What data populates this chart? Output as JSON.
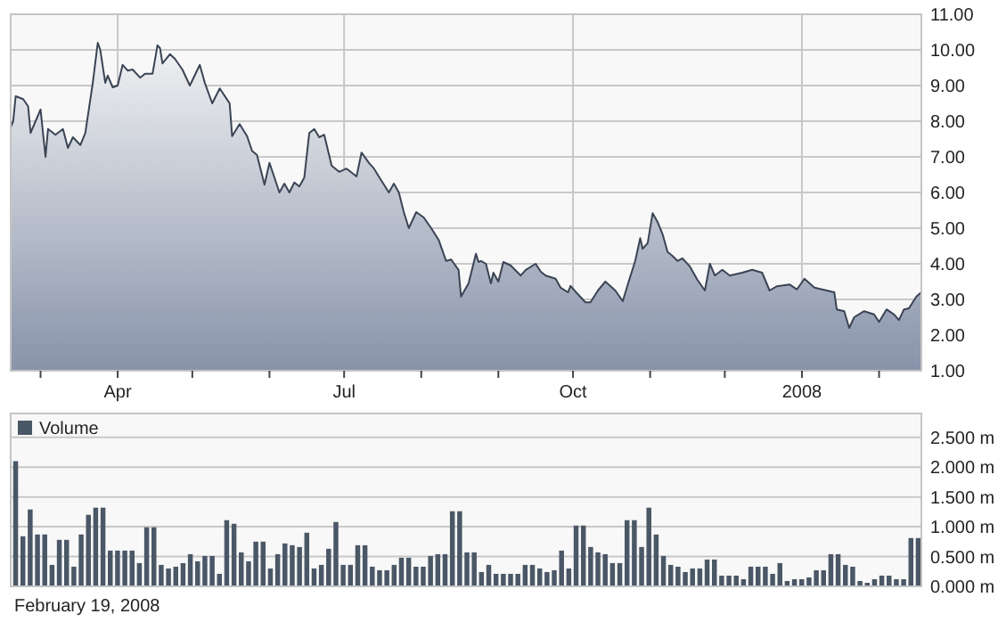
{
  "chart_data": [
    {
      "type": "area",
      "xlim": [
        "2007-02-17",
        "2008-02-18"
      ],
      "ylim": [
        1,
        11
      ],
      "grid": true,
      "xticks": [
        {
          "value": "2007-03-01",
          "label": null
        },
        {
          "value": "2007-04-01",
          "label": "Apr"
        },
        {
          "value": "2007-05-01",
          "label": null
        },
        {
          "value": "2007-06-01",
          "label": null
        },
        {
          "value": "2007-07-01",
          "label": "Jul"
        },
        {
          "value": "2007-08-01",
          "label": null
        },
        {
          "value": "2007-09-01",
          "label": null
        },
        {
          "value": "2007-10-01",
          "label": "Oct"
        },
        {
          "value": "2007-11-01",
          "label": null
        },
        {
          "value": "2007-12-01",
          "label": null
        },
        {
          "value": "2008-01-01",
          "label": "2008"
        },
        {
          "value": "2008-02-01",
          "label": null
        }
      ],
      "yticks": [
        {
          "value": 1,
          "label": "1.00"
        },
        {
          "value": 2,
          "label": "2.00"
        },
        {
          "value": 3,
          "label": "3.00"
        },
        {
          "value": 4,
          "label": "4.00"
        },
        {
          "value": 5,
          "label": "5.00"
        },
        {
          "value": 6,
          "label": "6.00"
        },
        {
          "value": 7,
          "label": "7.00"
        },
        {
          "value": 8,
          "label": "8.00"
        },
        {
          "value": 9,
          "label": "9.00"
        },
        {
          "value": 10,
          "label": "10.00"
        },
        {
          "value": 11,
          "label": "11.00"
        }
      ],
      "series": [
        {
          "color": "#3a4454",
          "x": [
            "2007-02-17",
            "2007-02-18",
            "2007-02-19",
            "2007-02-22",
            "2007-02-24",
            "2007-02-25",
            "2007-02-27",
            "2007-03-01",
            "2007-03-03",
            "2007-03-04",
            "2007-03-07",
            "2007-03-10",
            "2007-03-12",
            "2007-03-14",
            "2007-03-17",
            "2007-03-19",
            "2007-03-22",
            "2007-03-24",
            "2007-03-25",
            "2007-03-27",
            "2007-03-28",
            "2007-03-30",
            "2007-04-01",
            "2007-04-03",
            "2007-04-05",
            "2007-04-07",
            "2007-04-10",
            "2007-04-12",
            "2007-04-15",
            "2007-04-17",
            "2007-04-18",
            "2007-04-19",
            "2007-04-22",
            "2007-04-24",
            "2007-04-27",
            "2007-04-30",
            "2007-05-04",
            "2007-05-06",
            "2007-05-09",
            "2007-05-12",
            "2007-05-16",
            "2007-05-17",
            "2007-05-20",
            "2007-05-23",
            "2007-05-25",
            "2007-05-27",
            "2007-05-30",
            "2007-06-01",
            "2007-06-03",
            "2007-06-05",
            "2007-06-07",
            "2007-06-09",
            "2007-06-11",
            "2007-06-13",
            "2007-06-15",
            "2007-06-17",
            "2007-06-19",
            "2007-06-21",
            "2007-06-23",
            "2007-06-26",
            "2007-06-29",
            "2007-07-02",
            "2007-07-06",
            "2007-07-08",
            "2007-07-11",
            "2007-07-13",
            "2007-07-16",
            "2007-07-19",
            "2007-07-21",
            "2007-07-23",
            "2007-07-25",
            "2007-07-27",
            "2007-07-30",
            "2007-08-02",
            "2007-08-05",
            "2007-08-08",
            "2007-08-11",
            "2007-08-13",
            "2007-08-16",
            "2007-08-17",
            "2007-08-20",
            "2007-08-23",
            "2007-08-24",
            "2007-08-25",
            "2007-08-27",
            "2007-08-29",
            "2007-08-30",
            "2007-09-01",
            "2007-09-03",
            "2007-09-06",
            "2007-09-10",
            "2007-09-12",
            "2007-09-16",
            "2007-09-18",
            "2007-09-20",
            "2007-09-24",
            "2007-09-26",
            "2007-09-29",
            "2007-09-30",
            "2007-10-02",
            "2007-10-06",
            "2007-10-08",
            "2007-10-11",
            "2007-10-14",
            "2007-10-18",
            "2007-10-21",
            "2007-10-23",
            "2007-10-26",
            "2007-10-28",
            "2007-10-29",
            "2007-10-31",
            "2007-11-02",
            "2007-11-04",
            "2007-11-06",
            "2007-11-08",
            "2007-11-10",
            "2007-11-12",
            "2007-11-14",
            "2007-11-17",
            "2007-11-20",
            "2007-11-23",
            "2007-11-25",
            "2007-11-27",
            "2007-11-30",
            "2007-12-03",
            "2007-12-08",
            "2007-12-12",
            "2007-12-16",
            "2007-12-19",
            "2007-12-22",
            "2007-12-27",
            "2007-12-30",
            "2008-01-02",
            "2008-01-06",
            "2008-01-11",
            "2008-01-14",
            "2008-01-15",
            "2008-01-18",
            "2008-01-20",
            "2008-01-22",
            "2008-01-26",
            "2008-01-30",
            "2008-02-01",
            "2008-02-04",
            "2008-02-07",
            "2008-02-09",
            "2008-02-11",
            "2008-02-13",
            "2008-02-16",
            "2008-02-18"
          ],
          "values": [
            7.83,
            8.0,
            8.7,
            8.62,
            8.42,
            7.67,
            8.0,
            8.33,
            7.0,
            7.78,
            7.62,
            7.78,
            7.25,
            7.55,
            7.33,
            7.67,
            9.08,
            10.2,
            10.0,
            9.08,
            9.28,
            8.95,
            9.0,
            9.58,
            9.42,
            9.45,
            9.22,
            9.33,
            9.33,
            10.13,
            10.05,
            9.62,
            9.88,
            9.75,
            9.45,
            9.0,
            9.58,
            9.08,
            8.5,
            8.92,
            8.5,
            7.58,
            7.92,
            7.58,
            7.17,
            7.05,
            6.22,
            6.83,
            6.42,
            6.0,
            6.25,
            6.0,
            6.28,
            6.17,
            6.42,
            7.67,
            7.78,
            7.55,
            7.62,
            6.75,
            6.58,
            6.67,
            6.45,
            7.12,
            6.83,
            6.67,
            6.33,
            6.0,
            6.25,
            6.0,
            5.45,
            5.0,
            5.45,
            5.3,
            5.0,
            4.67,
            4.08,
            4.12,
            3.83,
            3.08,
            3.45,
            4.28,
            4.05,
            4.08,
            4.0,
            3.45,
            3.75,
            3.5,
            4.05,
            3.95,
            3.67,
            3.83,
            4.0,
            3.78,
            3.67,
            3.58,
            3.33,
            3.2,
            3.38,
            3.22,
            2.92,
            2.92,
            3.25,
            3.5,
            3.25,
            2.95,
            3.42,
            4.08,
            4.72,
            4.42,
            4.58,
            5.42,
            5.17,
            4.83,
            4.33,
            4.22,
            4.08,
            4.15,
            3.92,
            3.55,
            3.25,
            4.0,
            3.67,
            3.83,
            3.67,
            3.75,
            3.83,
            3.75,
            3.25,
            3.37,
            3.42,
            3.28,
            3.58,
            3.33,
            3.25,
            3.2,
            2.72,
            2.67,
            2.2,
            2.5,
            2.67,
            2.58,
            2.37,
            2.72,
            2.58,
            2.42,
            2.72,
            2.75,
            3.08,
            3.2
          ]
        }
      ]
    },
    {
      "type": "bar",
      "ylim": [
        0,
        2.9
      ],
      "grid": "y",
      "legend": "top left",
      "tick_labels": "y",
      "yticks": [
        {
          "value": 0,
          "label": "0.000 m"
        },
        {
          "value": 0.5,
          "label": "0.500 m"
        },
        {
          "value": 1,
          "label": "1.000 m"
        },
        {
          "value": 1.5,
          "label": "1.500 m"
        },
        {
          "value": 2,
          "label": "2.000 m"
        },
        {
          "value": 2.5,
          "label": "2.500 m"
        }
      ],
      "annotations": [
        "February 19, 2008"
      ],
      "categories": [
        null,
        null,
        null,
        null,
        null,
        null,
        null,
        null,
        null,
        null,
        null,
        null,
        null,
        null,
        null,
        null,
        null,
        null,
        null,
        null,
        null,
        null,
        null,
        null,
        null,
        null,
        null,
        null,
        null,
        null,
        null,
        null,
        null,
        null,
        null,
        null,
        null,
        null,
        null,
        null,
        null,
        null,
        null,
        null,
        null,
        null,
        null,
        null,
        null,
        null,
        null,
        null,
        null,
        null,
        null,
        null,
        null,
        null,
        null,
        null,
        null,
        null,
        null,
        null,
        null,
        null,
        null,
        null,
        null,
        null,
        null,
        null,
        null,
        null,
        null,
        null,
        null,
        null,
        null,
        null,
        null,
        null,
        null,
        null,
        null,
        null,
        null,
        null,
        null,
        null,
        null,
        null,
        null,
        null,
        null,
        null,
        null,
        null,
        null,
        null,
        null,
        null,
        null,
        null,
        null,
        null,
        null,
        null,
        null,
        null,
        null,
        null,
        null,
        null,
        null,
        null,
        null,
        null,
        null,
        null,
        null,
        null,
        null,
        null,
        null
      ],
      "series": [
        {
          "name": "Volume",
          "color": "#4a5766",
          "values": [
            2.1,
            0.84,
            1.29,
            0.87,
            0.87,
            0.36,
            0.78,
            0.78,
            0.33,
            0.87,
            1.2,
            1.32,
            1.32,
            0.6,
            0.6,
            0.6,
            0.6,
            0.39,
            0.99,
            0.99,
            0.36,
            0.3,
            0.33,
            0.39,
            0.54,
            0.42,
            0.51,
            0.51,
            0.21,
            1.11,
            1.05,
            0.57,
            0.42,
            0.75,
            0.75,
            0.3,
            0.54,
            0.72,
            0.69,
            0.66,
            0.9,
            0.3,
            0.36,
            0.63,
            1.08,
            0.36,
            0.36,
            0.69,
            0.69,
            0.33,
            0.27,
            0.27,
            0.36,
            0.48,
            0.48,
            0.33,
            0.33,
            0.51,
            0.54,
            0.54,
            1.26,
            1.26,
            0.57,
            0.57,
            0.24,
            0.36,
            0.21,
            0.21,
            0.21,
            0.21,
            0.36,
            0.36,
            0.3,
            0.24,
            0.27,
            0.6,
            0.3,
            1.02,
            1.02,
            0.66,
            0.57,
            0.54,
            0.39,
            0.39,
            1.11,
            1.11,
            0.66,
            1.32,
            0.87,
            0.51,
            0.36,
            0.33,
            0.24,
            0.3,
            0.3,
            0.45,
            0.45,
            0.18,
            0.18,
            0.18,
            0.12,
            0.33,
            0.33,
            0.33,
            0.21,
            0.39,
            0.09,
            0.12,
            0.12,
            0.15,
            0.27,
            0.27,
            0.54,
            0.54,
            0.36,
            0.33,
            0.09,
            0.06,
            0.12,
            0.18,
            0.18,
            0.12,
            0.12,
            0.81,
            0.81
          ]
        }
      ]
    }
  ]
}
